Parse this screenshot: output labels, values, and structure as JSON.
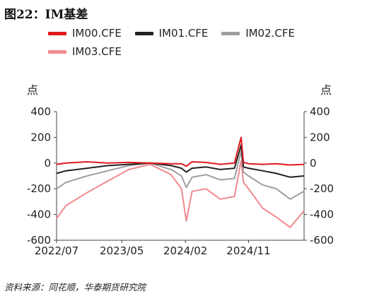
{
  "title": "图22：IM基差",
  "source": "资料来源：同花顺，华泰期货研究院",
  "chart_data": {
    "type": "line",
    "y_unit_left": "点",
    "y_unit_right": "点",
    "ylim": [
      -600,
      400
    ],
    "yticks": [
      -600,
      -400,
      -200,
      0,
      200,
      400
    ],
    "ytick_labels": [
      "-600",
      "-400",
      "-200",
      "0",
      "200",
      "400"
    ],
    "x_range": [
      "2022-07-22",
      "2025-06-30"
    ],
    "xtick_labels": [
      "2022/07",
      "2023/05",
      "2024/02",
      "2024/11"
    ],
    "xtick_dates": [
      "2022-07-22",
      "2023-05-01",
      "2024-02-01",
      "2024-11-01"
    ],
    "legend_position": "top",
    "grid": false,
    "series": [
      {
        "name": "IM00.CFE",
        "color": "#e0191f",
        "dates": [
          "2022-07-22",
          "2022-09-01",
          "2022-12-01",
          "2023-03-01",
          "2023-06-01",
          "2023-09-01",
          "2023-12-01",
          "2024-01-15",
          "2024-02-05",
          "2024-03-01",
          "2024-05-01",
          "2024-07-01",
          "2024-09-01",
          "2024-09-30",
          "2024-10-10",
          "2024-11-01",
          "2025-01-01",
          "2025-03-01",
          "2025-05-01",
          "2025-06-30"
        ],
        "values": [
          -10,
          0,
          10,
          0,
          5,
          0,
          -5,
          -5,
          -25,
          10,
          5,
          -10,
          0,
          200,
          5,
          -5,
          -10,
          -5,
          -15,
          -10
        ]
      },
      {
        "name": "IM01.CFE",
        "color": "#222222",
        "dates": [
          "2022-07-22",
          "2022-09-01",
          "2022-12-01",
          "2023-03-01",
          "2023-06-01",
          "2023-09-01",
          "2023-12-01",
          "2024-01-15",
          "2024-02-05",
          "2024-03-01",
          "2024-05-01",
          "2024-07-01",
          "2024-09-01",
          "2024-09-30",
          "2024-10-10",
          "2024-11-01",
          "2025-01-01",
          "2025-03-01",
          "2025-05-01",
          "2025-06-30"
        ],
        "values": [
          -80,
          -60,
          -40,
          -20,
          -10,
          0,
          -20,
          -40,
          -70,
          -40,
          -30,
          -50,
          -40,
          140,
          -30,
          -40,
          -60,
          -80,
          -110,
          -100
        ]
      },
      {
        "name": "IM02.CFE",
        "color": "#9e9e9e",
        "dates": [
          "2022-07-22",
          "2022-09-01",
          "2022-12-01",
          "2023-03-01",
          "2023-06-01",
          "2023-09-01",
          "2023-12-01",
          "2024-01-15",
          "2024-02-05",
          "2024-03-01",
          "2024-05-01",
          "2024-07-01",
          "2024-09-01",
          "2024-09-30",
          "2024-10-10",
          "2024-11-01",
          "2025-01-01",
          "2025-03-01",
          "2025-05-01",
          "2025-06-30"
        ],
        "values": [
          -200,
          -150,
          -100,
          -60,
          -20,
          0,
          -50,
          -100,
          -190,
          -110,
          -90,
          -130,
          -120,
          90,
          -70,
          -100,
          -170,
          -200,
          -280,
          -220
        ]
      },
      {
        "name": "IM03.CFE",
        "color": "#f08a8f",
        "dates": [
          "2022-07-22",
          "2022-09-01",
          "2022-12-01",
          "2023-03-01",
          "2023-06-01",
          "2023-09-01",
          "2023-12-01",
          "2024-01-15",
          "2024-02-05",
          "2024-03-01",
          "2024-05-01",
          "2024-07-01",
          "2024-09-01",
          "2024-09-30",
          "2024-10-10",
          "2024-11-01",
          "2025-01-01",
          "2025-03-01",
          "2025-05-01",
          "2025-06-30"
        ],
        "values": [
          -430,
          -330,
          -230,
          -140,
          -50,
          -10,
          -90,
          -200,
          -450,
          -220,
          -200,
          -280,
          -260,
          20,
          -150,
          -200,
          -350,
          -420,
          -500,
          -370
        ]
      }
    ]
  }
}
